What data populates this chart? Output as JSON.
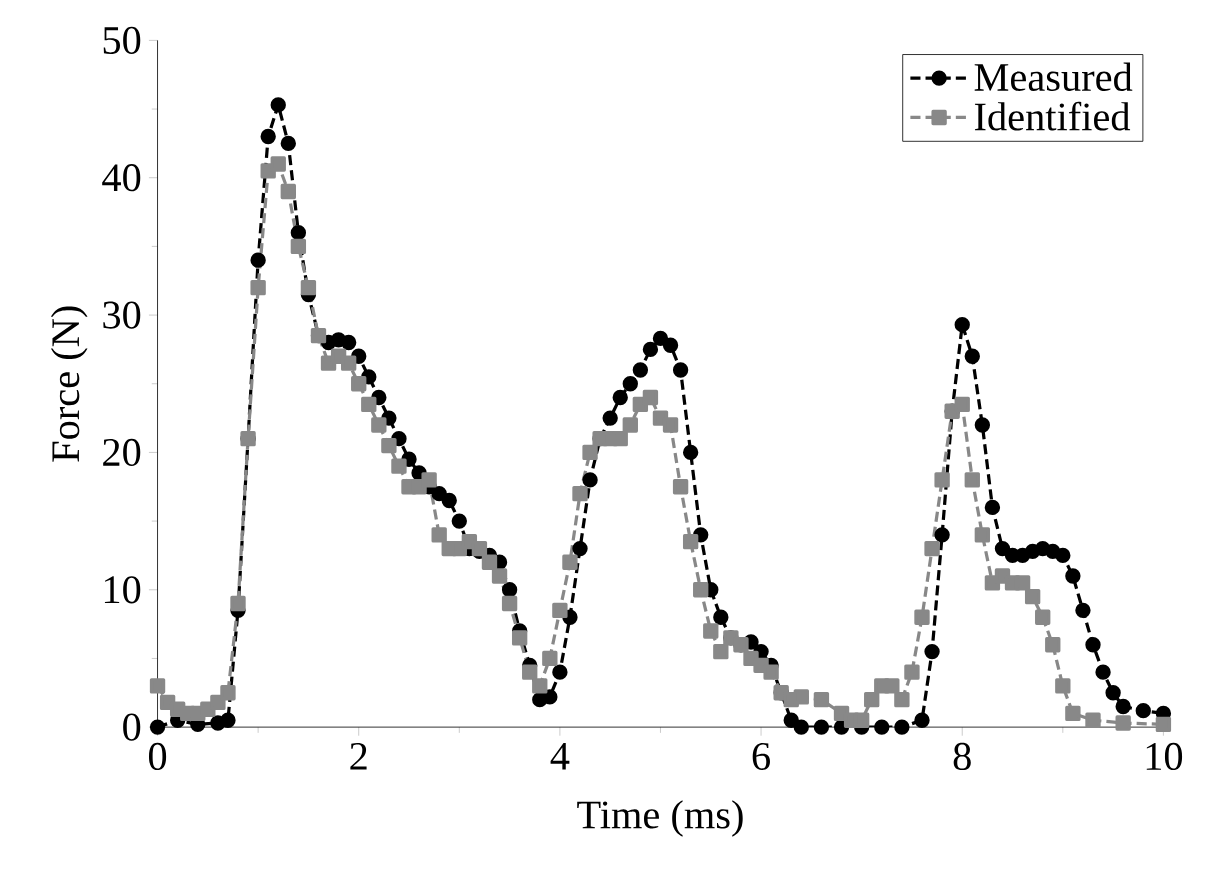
{
  "chart_data": {
    "type": "line",
    "xlabel": "Time (ms)",
    "ylabel": "Force (N)",
    "xlim": [
      0,
      10
    ],
    "ylim": [
      0,
      50
    ],
    "xticks": [
      0,
      2,
      4,
      6,
      8,
      10
    ],
    "yticks": [
      0,
      10,
      20,
      30,
      40,
      50
    ],
    "legend": "top right",
    "line_style": "dashed",
    "series": [
      {
        "name": "Measured",
        "color": "#000000",
        "marker": "circle",
        "x": [
          0,
          0.2,
          0.4,
          0.6,
          0.7,
          0.8,
          0.9,
          1.0,
          1.1,
          1.2,
          1.3,
          1.4,
          1.5,
          1.6,
          1.7,
          1.8,
          1.9,
          2.0,
          2.1,
          2.2,
          2.3,
          2.4,
          2.5,
          2.6,
          2.7,
          2.8,
          2.9,
          3.0,
          3.1,
          3.2,
          3.3,
          3.4,
          3.5,
          3.6,
          3.7,
          3.8,
          3.9,
          4.0,
          4.1,
          4.2,
          4.3,
          4.4,
          4.5,
          4.6,
          4.7,
          4.8,
          4.9,
          5.0,
          5.1,
          5.2,
          5.3,
          5.4,
          5.5,
          5.6,
          5.7,
          5.8,
          5.9,
          6.0,
          6.1,
          6.2,
          6.3,
          6.4,
          6.6,
          6.8,
          7.0,
          7.2,
          7.4,
          7.6,
          7.7,
          7.8,
          7.9,
          8.0,
          8.1,
          8.2,
          8.3,
          8.4,
          8.5,
          8.6,
          8.7,
          8.8,
          8.9,
          9.0,
          9.1,
          9.2,
          9.3,
          9.4,
          9.5,
          9.6,
          9.8,
          10.0
        ],
        "values": [
          0,
          0.5,
          0.2,
          0.3,
          0.5,
          8.5,
          21,
          34,
          43,
          45.3,
          42.5,
          36,
          31.5,
          28.5,
          28,
          28.2,
          28,
          27,
          25.5,
          24,
          22.5,
          21,
          19.5,
          18.5,
          17.5,
          17,
          16.5,
          15,
          13,
          12.8,
          12.5,
          12,
          10,
          7,
          4.5,
          2,
          2.2,
          4,
          8,
          13,
          18,
          21,
          22.5,
          24,
          25,
          26,
          27.5,
          28.3,
          27.8,
          26,
          20,
          14,
          10,
          8,
          6.5,
          6,
          6.2,
          5.5,
          4.5,
          2.5,
          0.5,
          0,
          0,
          0,
          0,
          0,
          0,
          0.5,
          5.5,
          14,
          23,
          29.3,
          27,
          22,
          16,
          13,
          12.5,
          12.5,
          12.8,
          13,
          12.8,
          12.5,
          11,
          8.5,
          6,
          4,
          2.5,
          1.5,
          1.2,
          1.0
        ]
      },
      {
        "name": "Identified",
        "color": "#888888",
        "marker": "square",
        "x": [
          0,
          0.1,
          0.2,
          0.3,
          0.4,
          0.5,
          0.6,
          0.7,
          0.8,
          0.9,
          1.0,
          1.1,
          1.2,
          1.3,
          1.4,
          1.5,
          1.6,
          1.7,
          1.8,
          1.9,
          2.0,
          2.1,
          2.2,
          2.3,
          2.4,
          2.5,
          2.6,
          2.7,
          2.8,
          2.9,
          3.0,
          3.1,
          3.2,
          3.3,
          3.4,
          3.5,
          3.6,
          3.7,
          3.8,
          3.9,
          4.0,
          4.1,
          4.2,
          4.3,
          4.4,
          4.5,
          4.6,
          4.7,
          4.8,
          4.9,
          5.0,
          5.1,
          5.2,
          5.3,
          5.4,
          5.5,
          5.6,
          5.7,
          5.8,
          5.9,
          6.0,
          6.1,
          6.2,
          6.3,
          6.4,
          6.6,
          6.8,
          6.9,
          7.0,
          7.1,
          7.2,
          7.3,
          7.4,
          7.5,
          7.6,
          7.7,
          7.8,
          7.9,
          8.0,
          8.1,
          8.2,
          8.3,
          8.4,
          8.5,
          8.6,
          8.7,
          8.8,
          8.9,
          9.0,
          9.1,
          9.3,
          9.6,
          10.0
        ],
        "values": [
          3,
          1.8,
          1.3,
          1.0,
          1.0,
          1.3,
          1.8,
          2.5,
          9,
          21,
          32,
          40.5,
          41,
          39,
          35,
          32,
          28.5,
          26.5,
          27,
          26.5,
          25,
          23.5,
          22,
          20.5,
          19,
          17.5,
          17.5,
          18,
          14,
          13,
          13,
          13.5,
          13,
          12,
          11,
          9,
          6.5,
          4,
          3,
          5,
          8.5,
          12,
          17,
          20,
          21,
          21,
          21,
          22,
          23.5,
          24,
          22.5,
          22,
          17.5,
          13.5,
          10,
          7,
          5.5,
          6.5,
          6,
          5,
          4.5,
          4,
          2.5,
          2,
          2.2,
          2,
          1.0,
          0.5,
          0.5,
          2,
          3,
          3,
          2,
          4,
          8,
          13,
          18,
          23,
          23.5,
          18,
          14,
          10.5,
          11,
          10.5,
          10.5,
          9.5,
          8,
          6,
          3,
          1,
          0.5,
          0.3,
          0.2
        ]
      }
    ]
  }
}
